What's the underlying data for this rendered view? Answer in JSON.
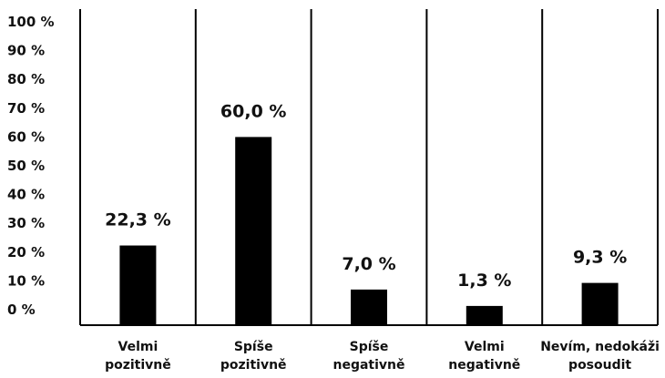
{
  "chart_data": {
    "type": "bar",
    "categories": [
      [
        "Velmi",
        "pozitivně"
      ],
      [
        "Spíše",
        "pozitivně"
      ],
      [
        "Spíše",
        "negativně"
      ],
      [
        "Velmi",
        "negativně"
      ],
      [
        "Nevím, nedokáži",
        "posoudit"
      ]
    ],
    "values": [
      22.3,
      60.0,
      7.0,
      1.3,
      9.3
    ],
    "value_labels": [
      "22,3 %",
      "60,0 %",
      "7,0 %",
      "1,3 %",
      "9,3 %"
    ],
    "yticks": [
      "0 %",
      "10 %",
      "20 %",
      "30 %",
      "40 %",
      "50 %",
      "60 %",
      "70 %",
      "80 %",
      "90 %",
      "100 %"
    ],
    "ylim": [
      0,
      100
    ],
    "bar_color": "#000000",
    "title": "",
    "xlabel": "",
    "ylabel": "",
    "grid": false,
    "legend": false
  }
}
